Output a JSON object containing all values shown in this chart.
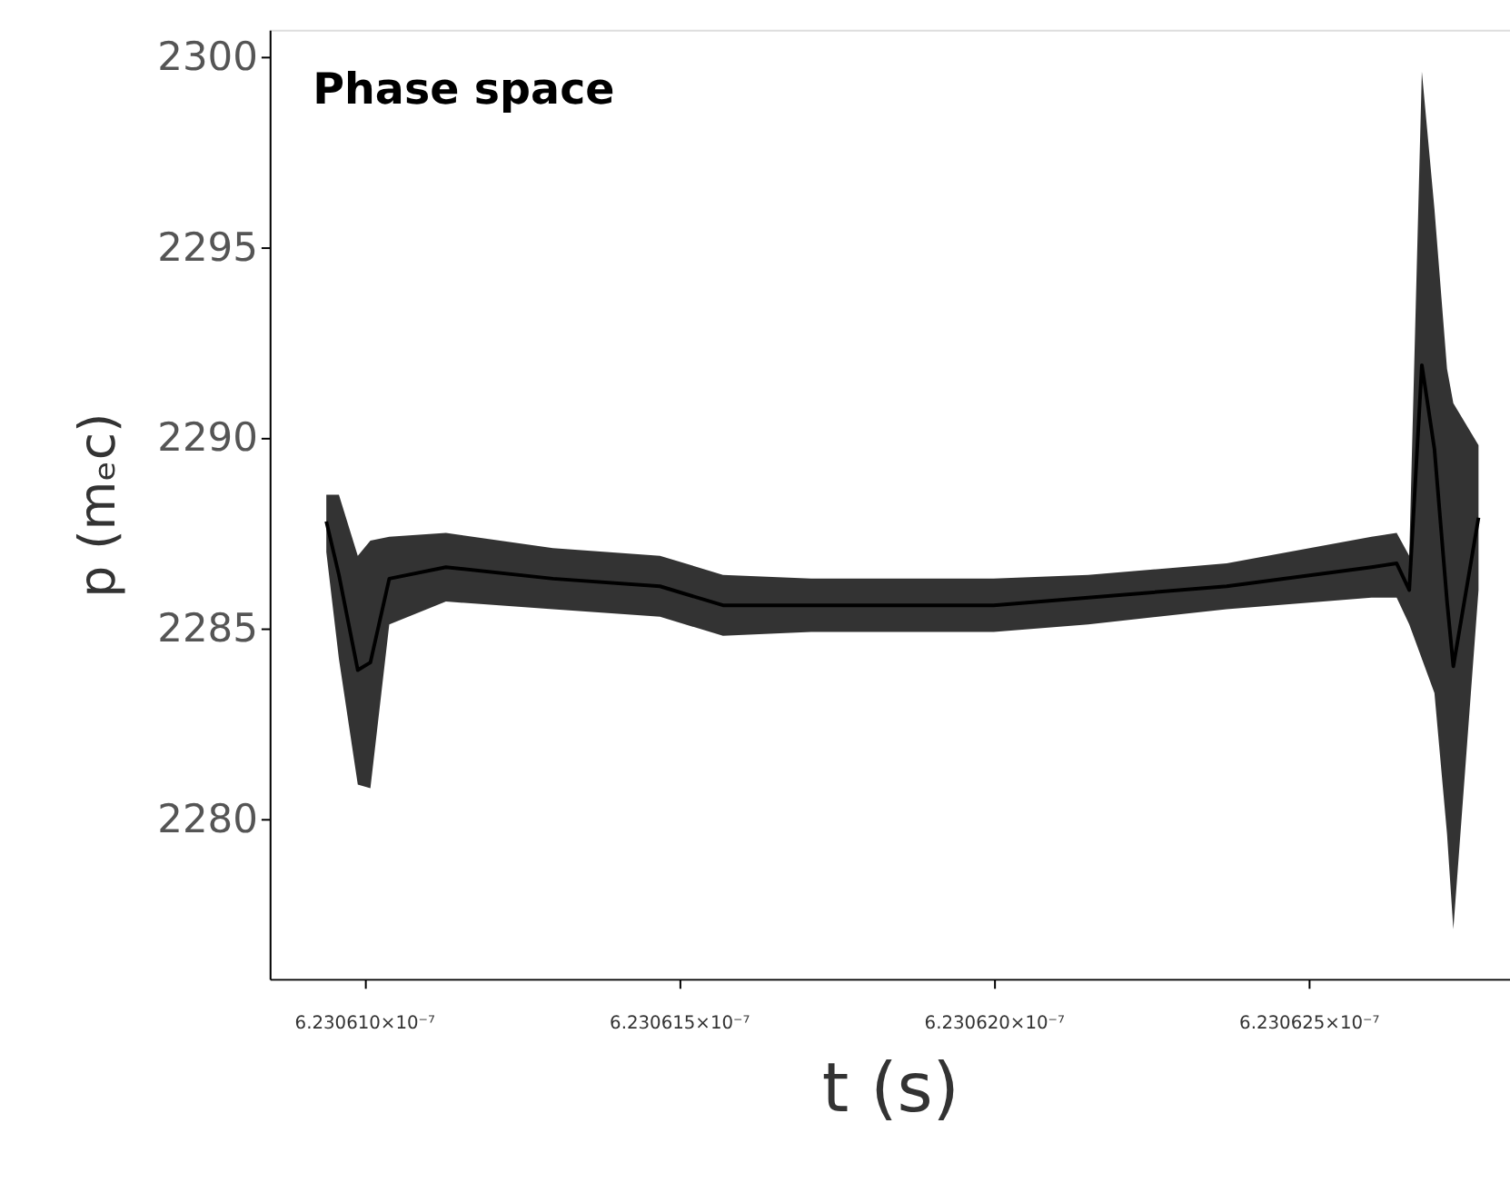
{
  "chart_data": {
    "type": "line",
    "title": "Phase space",
    "xlabel": "t (s)",
    "ylabel": "p (mₑc)",
    "xlim": [
      6.2306085e-07,
      6.2306282e-07
    ],
    "xticks": [
      {
        "value": 6.23061e-07,
        "label": "6.230610×10⁻⁷"
      },
      {
        "value": 6.230615e-07,
        "label": "6.230615×10⁻⁷"
      },
      {
        "value": 6.23062e-07,
        "label": "6.230620×10⁻⁷"
      },
      {
        "value": 6.230625e-07,
        "label": "6.230625×10⁻⁷"
      }
    ],
    "ylim": [
      2275.8,
      2300.7
    ],
    "yticks": [
      2280,
      2285,
      2290,
      2295,
      2300
    ],
    "grid": false,
    "legend": false,
    "marker": "none",
    "line_style": "solid",
    "series": [
      {
        "color": "#000000",
        "x": [
          6.2306094e-07,
          6.2306096e-07,
          6.2306099e-07,
          6.2306101e-07,
          6.2306104e-07,
          6.2306113e-07,
          6.230613e-07,
          6.2306147e-07,
          6.2306157e-07,
          6.2306171e-07,
          6.2306185e-07,
          6.23062e-07,
          6.2306215e-07,
          6.2306237e-07,
          6.230626e-07,
          6.2306264e-07,
          6.2306266e-07,
          6.2306268e-07,
          6.230627e-07,
          6.2306272e-07,
          6.2306273e-07,
          6.2306277e-07
        ],
        "values": [
          2287.8,
          2286.4,
          2283.9,
          2284.1,
          2286.3,
          2286.6,
          2286.3,
          2286.1,
          2285.6,
          2285.6,
          2285.6,
          2285.6,
          2285.8,
          2286.1,
          2286.6,
          2286.7,
          2286.0,
          2291.9,
          2289.7,
          2285.7,
          2284.0,
          2287.9
        ],
        "lower": [
          2287.0,
          2284.2,
          2280.9,
          2280.8,
          2285.1,
          2285.7,
          2285.5,
          2285.3,
          2284.8,
          2284.9,
          2284.9,
          2284.9,
          2285.1,
          2285.5,
          2285.8,
          2285.8,
          2285.1,
          2284.2,
          2283.3,
          2279.6,
          2277.1,
          2286.0
        ],
        "upper": [
          2288.5,
          2288.5,
          2286.9,
          2287.3,
          2287.4,
          2287.5,
          2287.1,
          2286.9,
          2286.4,
          2286.3,
          2286.3,
          2286.3,
          2286.4,
          2286.7,
          2287.4,
          2287.5,
          2286.9,
          2299.6,
          2296.0,
          2291.8,
          2290.9,
          2289.8
        ]
      }
    ]
  }
}
